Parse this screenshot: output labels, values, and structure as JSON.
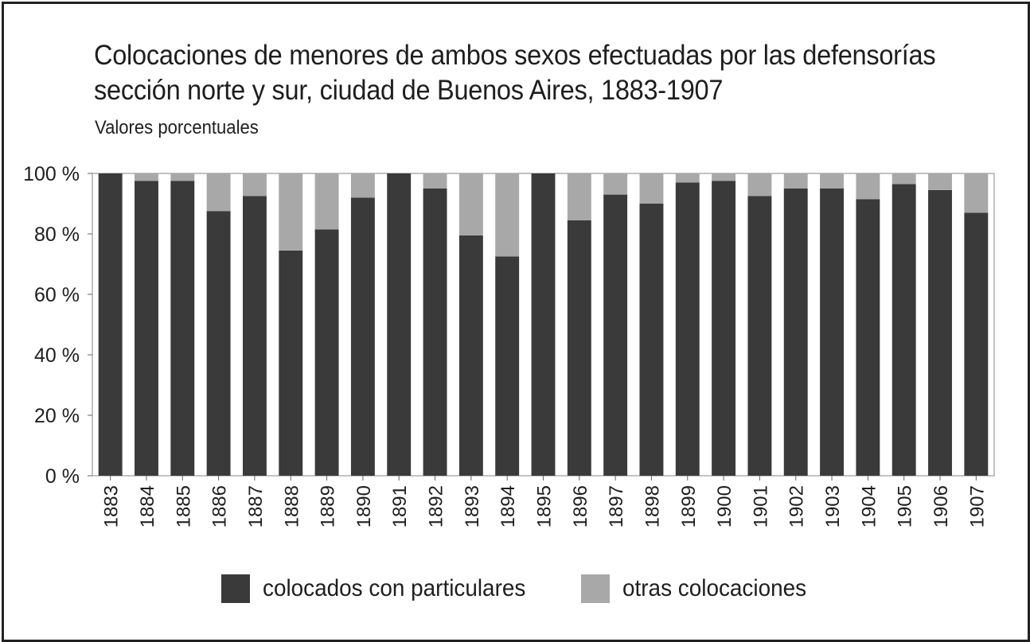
{
  "chart_data": {
    "type": "bar",
    "stacked": true,
    "title_lines": [
      "Colocaciones de menores de ambos sexos efectuadas por las defensorías",
      "sección norte y sur, ciudad de Buenos Aires, 1883-1907"
    ],
    "subtitle": "Valores porcentuales",
    "categories": [
      "1883",
      "1884",
      "1885",
      "1886",
      "1887",
      "1888",
      "1889",
      "1890",
      "1891",
      "1892",
      "1893",
      "1894",
      "1895",
      "1896",
      "1897",
      "1898",
      "1899",
      "1900",
      "1901",
      "1902",
      "1903",
      "1904",
      "1905",
      "1906",
      "1907"
    ],
    "series": [
      {
        "name": "colocados con particulares",
        "color": "#3a3a3a",
        "values": [
          100,
          97.5,
          97.5,
          87.5,
          92.5,
          74.5,
          81.5,
          92,
          100,
          95,
          79.5,
          72.5,
          100,
          84.5,
          93,
          90,
          97,
          97.5,
          92.5,
          95,
          95,
          91.5,
          96.5,
          94.5,
          87
        ]
      },
      {
        "name": "otras colocaciones",
        "color": "#a8a8a8",
        "values": [
          0,
          2.5,
          2.5,
          12.5,
          7.5,
          25.5,
          18.5,
          8,
          0,
          5,
          20.5,
          27.5,
          0,
          15.5,
          7,
          10,
          3,
          2.5,
          7.5,
          5,
          5,
          8.5,
          3.5,
          5.5,
          13
        ]
      }
    ],
    "ylim": [
      0,
      100
    ],
    "yticks": [
      0,
      20,
      40,
      60,
      80,
      100
    ],
    "ytick_labels": [
      "0 %",
      "20 %",
      "40 %",
      "60 %",
      "80 %",
      "100 %"
    ],
    "grid": false,
    "legend_position": "bottom"
  }
}
